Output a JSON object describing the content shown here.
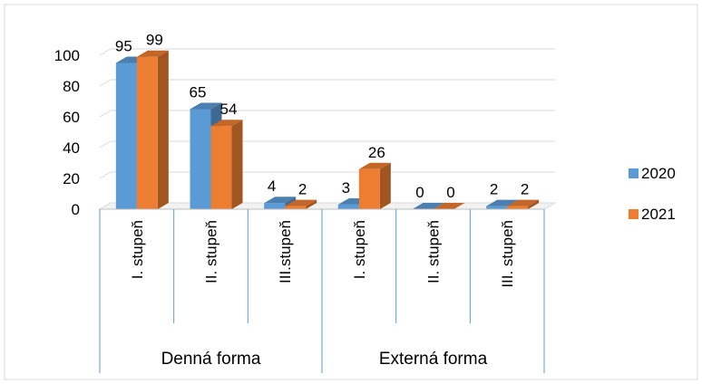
{
  "chart_data": {
    "type": "bar",
    "title": "",
    "xlabel": "",
    "ylabel": "",
    "ylim": [
      0,
      100
    ],
    "yticks": [
      0,
      20,
      40,
      60,
      80,
      100
    ],
    "grid": true,
    "legend_position": "right",
    "groups": [
      {
        "label": "Denná forma",
        "categories": [
          "I. stupeň",
          "II. stupeň",
          "III.stupeň"
        ]
      },
      {
        "label": "Externá forma",
        "categories": [
          "I. stupeň",
          "II. stupeň",
          "III. stupeň"
        ]
      }
    ],
    "categories": [
      "I. stupeň",
      "II. stupeň",
      "III.stupeň",
      "I. stupeň",
      "II. stupeň",
      "III. stupeň"
    ],
    "series": [
      {
        "name": "2020",
        "color": "#5B9BD5",
        "values": [
          95,
          65,
          4,
          3,
          0,
          2
        ]
      },
      {
        "name": "2021",
        "color": "#ED7D31",
        "values": [
          99,
          54,
          2,
          26,
          0,
          2
        ]
      }
    ]
  }
}
